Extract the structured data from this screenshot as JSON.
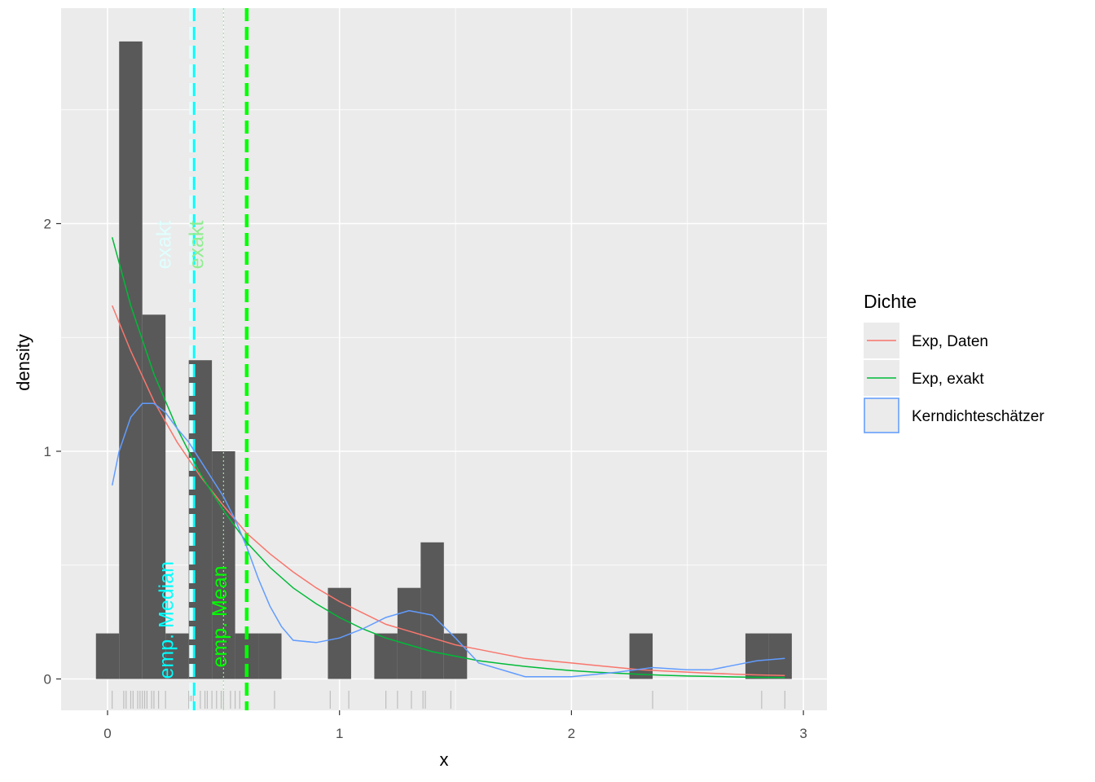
{
  "chart_data": {
    "type": "histogram",
    "xlabel": "x",
    "ylabel": "density",
    "xlim": [
      -0.2,
      3.1
    ],
    "ylim": [
      -0.14,
      2.9
    ],
    "x_ticks": [
      "0",
      "1",
      "2",
      "3"
    ],
    "y_ticks": [
      "0",
      "1",
      "2"
    ],
    "histogram": {
      "bin_width": 0.1,
      "fill": "#595959",
      "bins": [
        {
          "x0": -0.05,
          "x1": 0.05,
          "density": 0.2
        },
        {
          "x0": 0.05,
          "x1": 0.15,
          "density": 2.8
        },
        {
          "x0": 0.15,
          "x1": 0.25,
          "density": 1.6
        },
        {
          "x0": 0.25,
          "x1": 0.35,
          "density": 0.2
        },
        {
          "x0": 0.35,
          "x1": 0.45,
          "density": 1.4
        },
        {
          "x0": 0.45,
          "x1": 0.55,
          "density": 1.0
        },
        {
          "x0": 0.55,
          "x1": 0.65,
          "density": 0.2
        },
        {
          "x0": 0.65,
          "x1": 0.75,
          "density": 0.2
        },
        {
          "x0": 0.95,
          "x1": 1.05,
          "density": 0.4
        },
        {
          "x0": 1.15,
          "x1": 1.25,
          "density": 0.2
        },
        {
          "x0": 1.25,
          "x1": 1.35,
          "density": 0.4
        },
        {
          "x0": 1.35,
          "x1": 1.45,
          "density": 0.6
        },
        {
          "x0": 1.45,
          "x1": 1.55,
          "density": 0.2
        },
        {
          "x0": 2.25,
          "x1": 2.35,
          "density": 0.2
        },
        {
          "x0": 2.75,
          "x1": 2.85,
          "density": 0.2
        },
        {
          "x0": 2.85,
          "x1": 2.95,
          "density": 0.2
        }
      ]
    },
    "rug": {
      "color": "#bdbdbd",
      "x": [
        0.02,
        0.07,
        0.08,
        0.1,
        0.11,
        0.13,
        0.14,
        0.15,
        0.16,
        0.17,
        0.19,
        0.2,
        0.22,
        0.25,
        0.35,
        0.36,
        0.37,
        0.4,
        0.42,
        0.43,
        0.45,
        0.47,
        0.49,
        0.5,
        0.53,
        0.55,
        0.57,
        0.72,
        0.96,
        1.04,
        1.2,
        1.25,
        1.31,
        1.36,
        1.37,
        1.48,
        2.35,
        2.82,
        2.92
      ]
    },
    "series": [
      {
        "name": "Exp, Daten",
        "color": "#f8766d",
        "x": [
          0.02,
          0.1,
          0.2,
          0.3,
          0.4,
          0.5,
          0.6,
          0.7,
          0.8,
          0.9,
          1.0,
          1.1,
          1.2,
          1.3,
          1.4,
          1.5,
          1.6,
          1.7,
          1.8,
          1.9,
          2.0,
          2.1,
          2.2,
          2.3,
          2.4,
          2.5,
          2.6,
          2.7,
          2.8,
          2.92
        ],
        "values": [
          1.64,
          1.44,
          1.22,
          1.04,
          0.89,
          0.76,
          0.64,
          0.55,
          0.47,
          0.4,
          0.34,
          0.29,
          0.24,
          0.21,
          0.18,
          0.15,
          0.13,
          0.11,
          0.09,
          0.08,
          0.07,
          0.06,
          0.05,
          0.04,
          0.035,
          0.03,
          0.025,
          0.021,
          0.018,
          0.015
        ]
      },
      {
        "name": "Exp, exakt",
        "color": "#00ba38",
        "x": [
          0.02,
          0.1,
          0.2,
          0.3,
          0.4,
          0.5,
          0.6,
          0.7,
          0.8,
          0.9,
          1.0,
          1.1,
          1.2,
          1.3,
          1.4,
          1.5,
          1.6,
          1.7,
          1.8,
          1.9,
          2.0,
          2.1,
          2.2,
          2.3,
          2.4,
          2.5,
          2.6,
          2.7,
          2.8,
          2.92
        ],
        "values": [
          1.94,
          1.64,
          1.34,
          1.1,
          0.9,
          0.74,
          0.6,
          0.49,
          0.4,
          0.33,
          0.27,
          0.22,
          0.18,
          0.15,
          0.12,
          0.1,
          0.08,
          0.067,
          0.055,
          0.045,
          0.037,
          0.03,
          0.025,
          0.02,
          0.016,
          0.013,
          0.011,
          0.009,
          0.007,
          0.006
        ]
      },
      {
        "name": "Kerndichteschätzer",
        "color": "#619cff",
        "x": [
          0.02,
          0.05,
          0.1,
          0.15,
          0.2,
          0.25,
          0.3,
          0.35,
          0.4,
          0.45,
          0.5,
          0.55,
          0.6,
          0.65,
          0.7,
          0.75,
          0.8,
          0.9,
          1.0,
          1.1,
          1.2,
          1.3,
          1.4,
          1.5,
          1.6,
          1.8,
          2.0,
          2.2,
          2.35,
          2.5,
          2.6,
          2.7,
          2.8,
          2.92
        ],
        "values": [
          0.85,
          1.0,
          1.15,
          1.21,
          1.21,
          1.17,
          1.1,
          1.04,
          0.96,
          0.88,
          0.8,
          0.7,
          0.58,
          0.44,
          0.32,
          0.23,
          0.17,
          0.16,
          0.18,
          0.22,
          0.27,
          0.3,
          0.28,
          0.18,
          0.07,
          0.01,
          0.01,
          0.03,
          0.05,
          0.04,
          0.04,
          0.06,
          0.08,
          0.09
        ]
      }
    ],
    "vlines": [
      {
        "label": "emp. Median",
        "x": 0.37,
        "color": "#00ffff",
        "style": "dashed",
        "label_y": 0.0
      },
      {
        "label": "emp. Mean",
        "x": 0.6,
        "color": "#00ff00",
        "style": "dashed",
        "label_y": 0.05
      },
      {
        "label": "exakt",
        "x": 0.36,
        "color": "#e0ffff",
        "style": "dashed",
        "label_y": 1.8
      },
      {
        "label": "exakt",
        "x": 0.5,
        "color": "#90ee90",
        "style": "dotted",
        "label_y": 1.8
      }
    ],
    "legend": {
      "title": "Dichte",
      "placement": "right",
      "entries": [
        "Exp, Daten",
        "Exp, exakt",
        "Kerndichteschätzer"
      ]
    }
  }
}
